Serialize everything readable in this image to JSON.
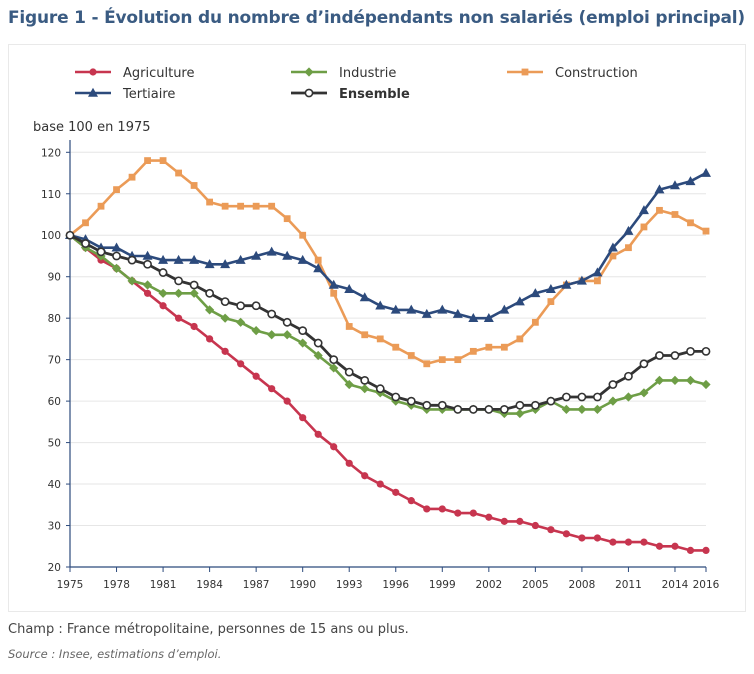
{
  "figure": {
    "title": "Figure 1 - Évolution du nombre d’indépendants non salariés (emploi principal)",
    "note": "Champ : France métropolitaine, personnes de 15 ans ou plus.",
    "source": "Source : Insee, estimations d’emploi."
  },
  "colors": {
    "title": "#3a5b82",
    "axis": "#2c4a7c",
    "grid": "#e6e6e6"
  },
  "chart_data": {
    "type": "line",
    "ylabel": "base 100 en 1975",
    "x": [
      1975,
      1976,
      1977,
      1978,
      1979,
      1980,
      1981,
      1982,
      1983,
      1984,
      1985,
      1986,
      1987,
      1988,
      1989,
      1990,
      1991,
      1992,
      1993,
      1994,
      1995,
      1996,
      1997,
      1998,
      1999,
      2000,
      2001,
      2002,
      2003,
      2004,
      2005,
      2006,
      2007,
      2008,
      2009,
      2010,
      2011,
      2012,
      2013,
      2014,
      2015,
      2016
    ],
    "x_ticks": [
      1975,
      1978,
      1981,
      1984,
      1987,
      1990,
      1993,
      1996,
      1999,
      2002,
      2005,
      2008,
      2011,
      2014,
      2016
    ],
    "y_ticks": [
      20,
      30,
      40,
      50,
      60,
      70,
      80,
      90,
      100,
      110,
      120
    ],
    "ylim": [
      20,
      122
    ],
    "xlim": [
      1975,
      2016
    ],
    "grid": "horizontal",
    "legend_position": "top",
    "series": [
      {
        "name": "Agriculture",
        "color": "#c7354f",
        "marker": "circle",
        "bold": false,
        "values": [
          100,
          97,
          94,
          92,
          89,
          86,
          83,
          80,
          78,
          75,
          72,
          69,
          66,
          63,
          60,
          56,
          52,
          49,
          45,
          42,
          40,
          38,
          36,
          34,
          34,
          33,
          33,
          32,
          31,
          31,
          30,
          29,
          28,
          27,
          27,
          26,
          26,
          26,
          25,
          25,
          24,
          24
        ]
      },
      {
        "name": "Industrie",
        "color": "#6e9e46",
        "marker": "diamond",
        "bold": false,
        "values": [
          100,
          97,
          95,
          92,
          89,
          88,
          86,
          86,
          86,
          82,
          80,
          79,
          77,
          76,
          76,
          74,
          71,
          68,
          64,
          63,
          62,
          60,
          59,
          58,
          58,
          58,
          58,
          58,
          57,
          57,
          58,
          60,
          58,
          58,
          58,
          60,
          61,
          62,
          65,
          65,
          65,
          64
        ]
      },
      {
        "name": "Construction",
        "color": "#eb9b57",
        "marker": "square",
        "bold": false,
        "values": [
          100,
          103,
          107,
          111,
          114,
          118,
          118,
          115,
          112,
          108,
          107,
          107,
          107,
          107,
          104,
          100,
          94,
          86,
          78,
          76,
          75,
          73,
          71,
          69,
          70,
          70,
          72,
          73,
          73,
          75,
          79,
          84,
          88,
          89,
          89,
          95,
          97,
          102,
          106,
          105,
          103,
          101
        ]
      },
      {
        "name": "Tertiaire",
        "color": "#2c4a7c",
        "marker": "triangle",
        "bold": false,
        "values": [
          100,
          99,
          97,
          97,
          95,
          95,
          94,
          94,
          94,
          93,
          93,
          94,
          95,
          96,
          95,
          94,
          92,
          88,
          87,
          85,
          83,
          82,
          82,
          81,
          82,
          81,
          80,
          80,
          82,
          84,
          86,
          87,
          88,
          89,
          91,
          97,
          101,
          106,
          111,
          112,
          113,
          115
        ]
      },
      {
        "name": "Ensemble",
        "color": "#333333",
        "marker": "open-circle",
        "bold": true,
        "values": [
          100,
          98,
          96,
          95,
          94,
          93,
          91,
          89,
          88,
          86,
          84,
          83,
          83,
          81,
          79,
          77,
          74,
          70,
          67,
          65,
          63,
          61,
          60,
          59,
          59,
          58,
          58,
          58,
          58,
          59,
          59,
          60,
          61,
          61,
          61,
          64,
          66,
          69,
          71,
          71,
          72,
          72
        ]
      }
    ]
  }
}
